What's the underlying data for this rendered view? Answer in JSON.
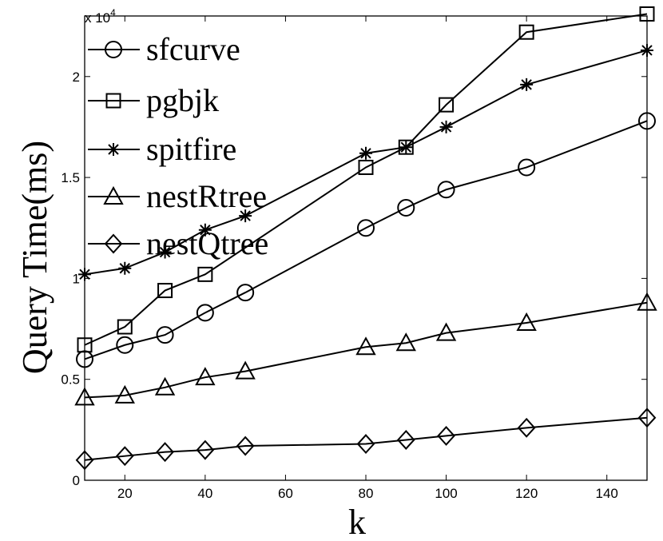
{
  "chart_data": {
    "type": "line",
    "xlabel": "k",
    "ylabel": "Query Time(ms)",
    "y_multiplier_label": "x 10",
    "y_multiplier_exponent": "4",
    "xlim": [
      10,
      150
    ],
    "ylim": [
      0,
      2.3
    ],
    "xticks": [
      20,
      40,
      60,
      80,
      100,
      120,
      140
    ],
    "yticks": [
      0,
      0.5,
      1,
      1.5,
      2
    ],
    "ytick_labels": [
      "0",
      "0.5",
      "1",
      "1.5",
      "2"
    ],
    "x": [
      10,
      20,
      30,
      40,
      50,
      80,
      90,
      100,
      120,
      150
    ],
    "legend_position": "top-left",
    "series": [
      {
        "name": "sfcurve",
        "marker": "circle",
        "values": [
          0.6,
          0.67,
          0.72,
          0.83,
          0.93,
          1.25,
          1.35,
          1.44,
          1.55,
          1.78
        ]
      },
      {
        "name": "pgbjk",
        "marker": "square",
        "values": [
          0.67,
          0.76,
          0.94,
          1.02,
          null,
          1.55,
          1.65,
          1.86,
          2.22,
          2.31
        ]
      },
      {
        "name": "spitfire",
        "marker": "asterisk",
        "values": [
          1.02,
          1.05,
          1.13,
          1.24,
          1.31,
          1.62,
          1.65,
          1.75,
          1.96,
          2.13
        ]
      },
      {
        "name": "nestRtree",
        "marker": "triangle",
        "values": [
          0.41,
          0.42,
          0.46,
          0.51,
          0.54,
          0.66,
          0.68,
          0.73,
          0.78,
          0.88
        ]
      },
      {
        "name": "nestQtree",
        "marker": "diamond",
        "values": [
          0.1,
          0.12,
          0.14,
          0.15,
          0.17,
          0.18,
          0.2,
          0.22,
          0.26,
          0.31
        ]
      }
    ]
  }
}
